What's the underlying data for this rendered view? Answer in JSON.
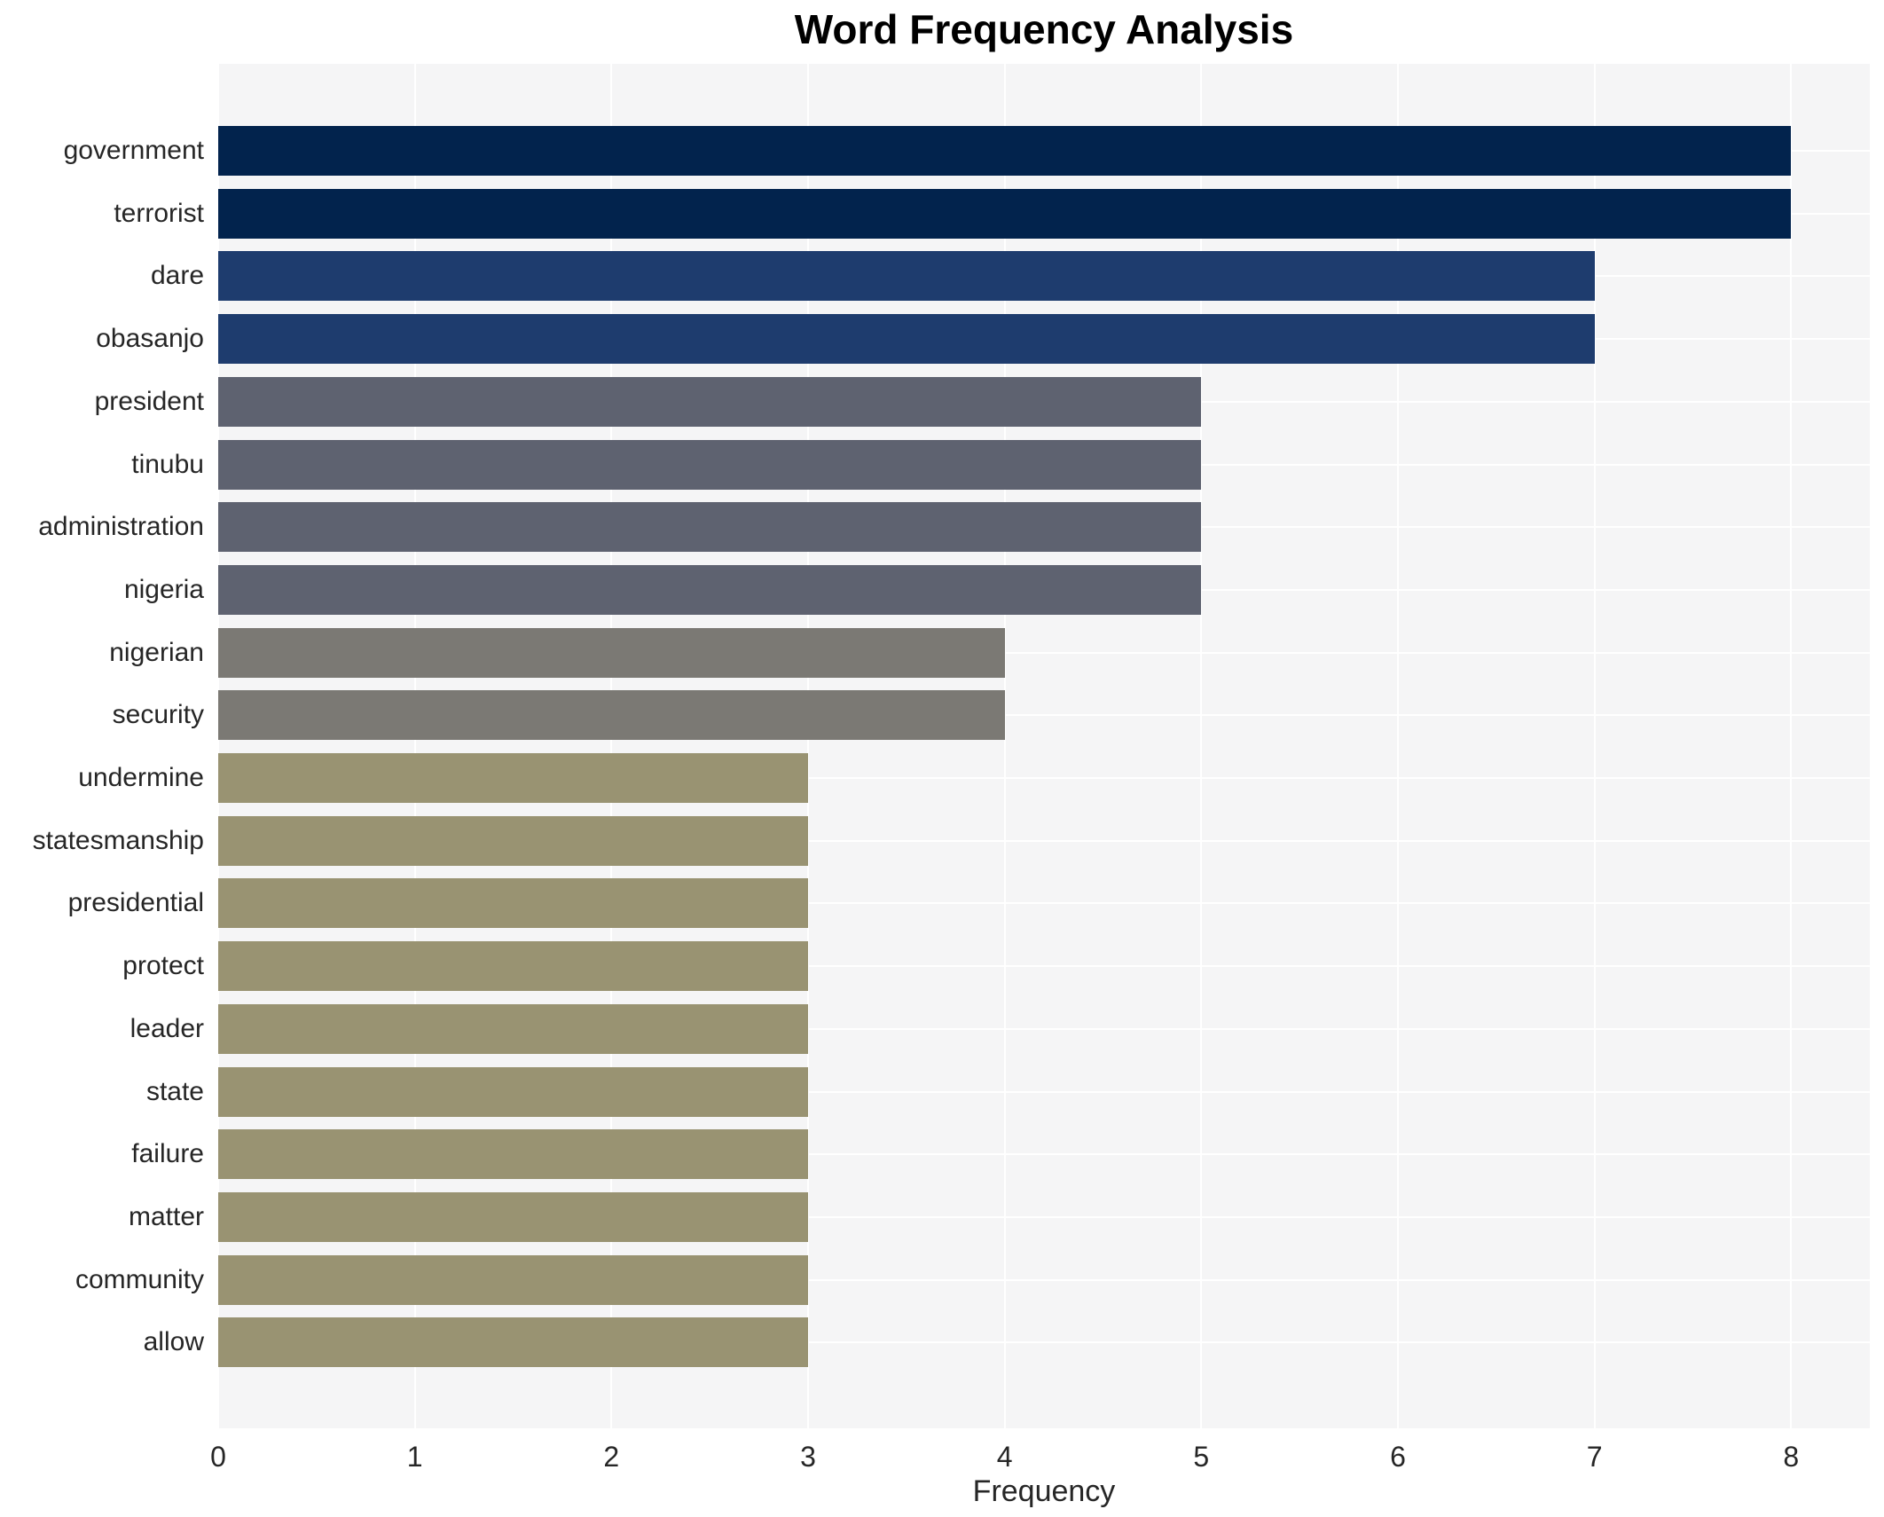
{
  "title": "Word Frequency Analysis",
  "chart_data": {
    "type": "bar",
    "orientation": "horizontal",
    "title": "Word Frequency Analysis",
    "xlabel": "Frequency",
    "ylabel": "",
    "xlim": [
      0,
      8.4
    ],
    "xticks": [
      0,
      1,
      2,
      3,
      4,
      5,
      6,
      7,
      8
    ],
    "grid": true,
    "legend": "none",
    "panel_bg": "#f5f5f6",
    "grid_color": "#ffffff",
    "categories": [
      "government",
      "terrorist",
      "dare",
      "obasanjo",
      "president",
      "tinubu",
      "administration",
      "nigeria",
      "nigerian",
      "security",
      "undermine",
      "statesmanship",
      "presidential",
      "protect",
      "leader",
      "state",
      "failure",
      "matter",
      "community",
      "allow"
    ],
    "values": [
      8,
      8,
      7,
      7,
      5,
      5,
      5,
      5,
      4,
      4,
      3,
      3,
      3,
      3,
      3,
      3,
      3,
      3,
      3,
      3
    ],
    "colors": [
      "#02234d",
      "#02234d",
      "#1e3c6e",
      "#1e3c6e",
      "#5e6270",
      "#5e6270",
      "#5e6270",
      "#5e6270",
      "#7b7974",
      "#7b7974",
      "#999372",
      "#999372",
      "#999372",
      "#999372",
      "#999372",
      "#999372",
      "#999372",
      "#999372",
      "#999372",
      "#999372"
    ]
  }
}
